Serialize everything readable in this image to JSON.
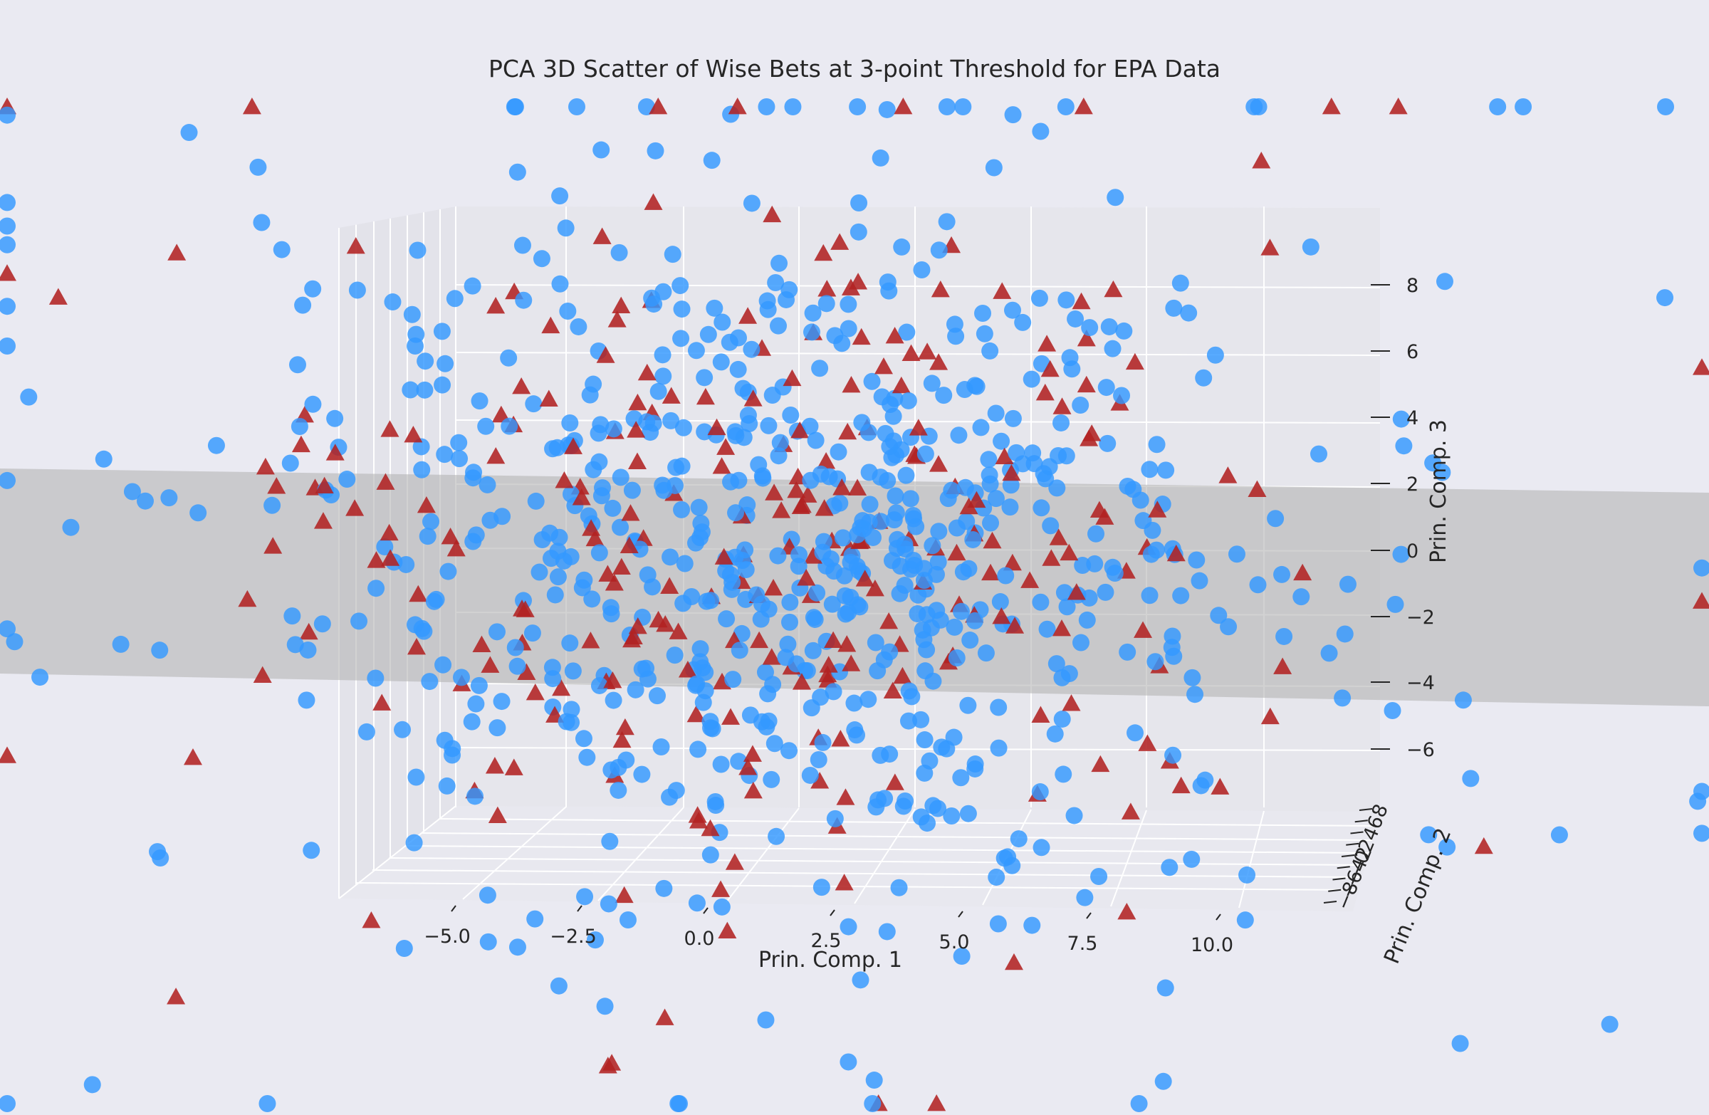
{
  "chart_data": {
    "type": "scatter",
    "projection": "3d",
    "title": "PCA 3D Scatter of Wise Bets at 3-point Threshold for EPA Data",
    "xlabel": "Prin. Comp. 1",
    "ylabel": "Prin. Comp. 2",
    "zlabel": "Prin. Comp. 3",
    "x_ticks": [
      "−5.0",
      "−2.5",
      "0.0",
      "2.5",
      "5.0",
      "7.5",
      "10.0"
    ],
    "y_ticks": [
      "−8",
      "−6",
      "−4",
      "−2",
      "0",
      "2",
      "4",
      "6",
      "8"
    ],
    "z_ticks": [
      "−6",
      "−4",
      "−2",
      "0",
      "2",
      "4",
      "6",
      "8"
    ],
    "grid": true,
    "legend": "none",
    "plane": {
      "description": "decision plane",
      "color": "#b4b4b4"
    },
    "series": [
      {
        "marker": "circle",
        "color": "#3399ff"
      },
      {
        "marker": "triangle",
        "color": "#b22222"
      }
    ],
    "note": "Approximately 750 blue circle points and 250 red triangle points scattered around the decision plane; individual 3D coordinates are not readable from the image."
  }
}
